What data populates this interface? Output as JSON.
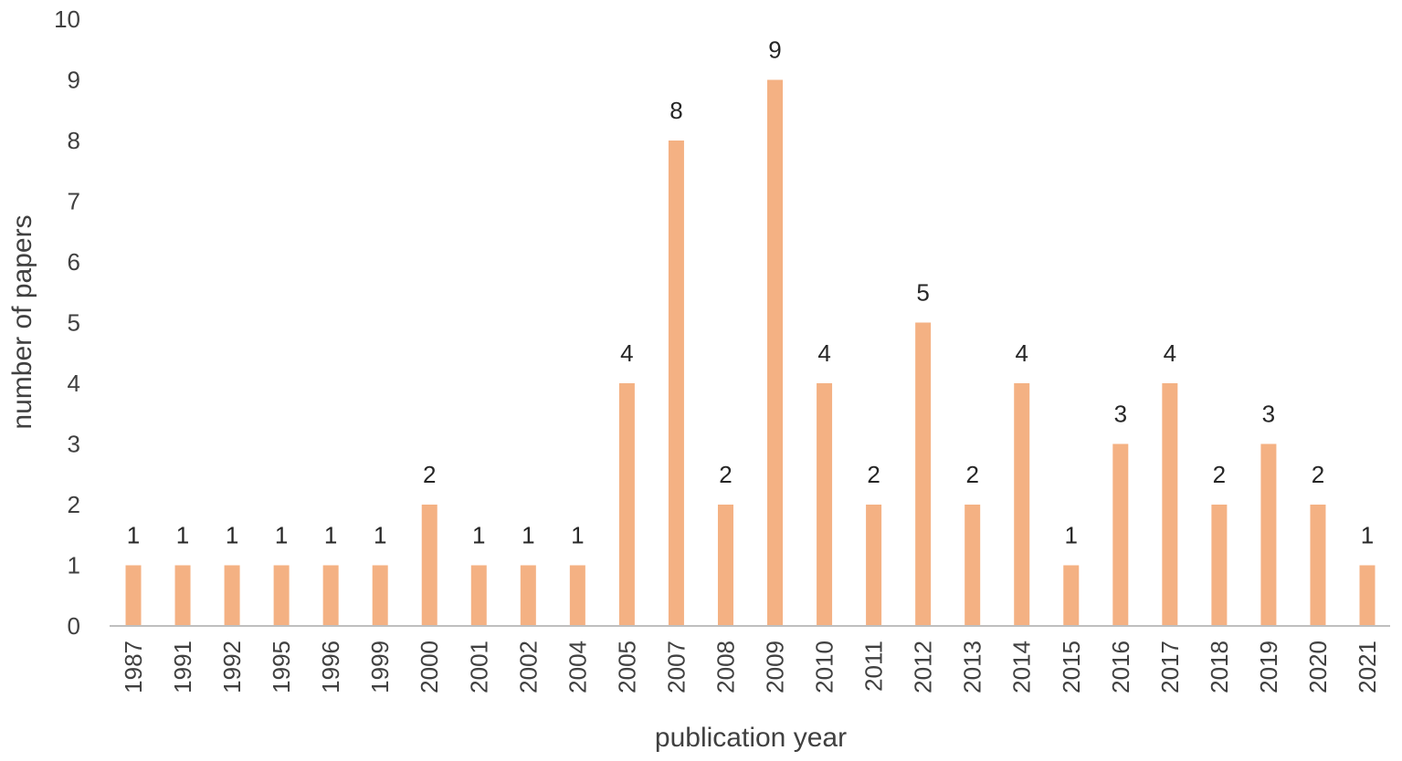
{
  "chart_data": {
    "type": "bar",
    "title": "",
    "xlabel": "publication year",
    "ylabel": "number of papers",
    "ylim": [
      0,
      10
    ],
    "yticks": [
      0,
      1,
      2,
      3,
      4,
      5,
      6,
      7,
      8,
      9,
      10
    ],
    "grid": false,
    "legend": "none",
    "bar_color": "#F4B183",
    "axis_color": "#BFBFBF",
    "categories": [
      "1987",
      "1991",
      "1992",
      "1995",
      "1996",
      "1999",
      "2000",
      "2001",
      "2002",
      "2004",
      "2005",
      "2007",
      "2008",
      "2009",
      "2010",
      "2011",
      "2012",
      "2013",
      "2014",
      "2015",
      "2016",
      "2017",
      "2018",
      "2019",
      "2020",
      "2021"
    ],
    "values": [
      1,
      1,
      1,
      1,
      1,
      1,
      2,
      1,
      1,
      1,
      4,
      8,
      2,
      9,
      4,
      2,
      5,
      2,
      4,
      1,
      3,
      4,
      2,
      3,
      2,
      1
    ],
    "data_labels": true
  }
}
